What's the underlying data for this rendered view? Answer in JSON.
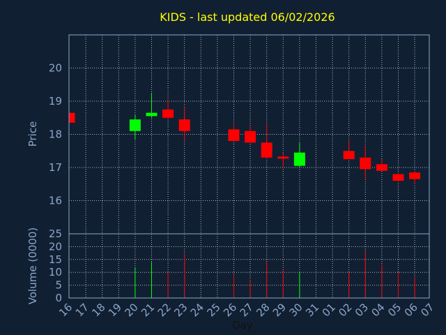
{
  "chart_data": {
    "type": "candlestick",
    "title": "KIDS - last updated 06/02/2026",
    "xlabel": "Day",
    "x_ticks": [
      "16",
      "17",
      "18",
      "19",
      "20",
      "21",
      "22",
      "23",
      "24",
      "25",
      "26",
      "27",
      "28",
      "29",
      "30",
      "31",
      "01",
      "02",
      "03",
      "04",
      "05",
      "06",
      "07"
    ],
    "price_panel": {
      "ylabel": "Price",
      "ylim": [
        15.0,
        21.0
      ],
      "yticks": [
        16,
        17,
        18,
        19,
        20
      ],
      "grid": true
    },
    "volume_panel": {
      "ylabel": "Volume (0000)",
      "ylim": [
        0,
        25
      ],
      "yticks": [
        0,
        5,
        10,
        15,
        20,
        25
      ],
      "grid": true
    },
    "colors": {
      "up": "#00ff00",
      "down": "#ff0000",
      "background": "#111f33",
      "text": "#8aa8c8",
      "title": "#ffff00"
    },
    "candles": [
      {
        "day": "16",
        "open": 18.65,
        "high": 18.65,
        "low": 18.35,
        "close": 18.35,
        "volume": 0
      },
      {
        "day": "20",
        "open": 18.1,
        "high": 18.6,
        "low": 17.85,
        "close": 18.45,
        "volume": 12
      },
      {
        "day": "21",
        "open": 18.55,
        "high": 19.25,
        "low": 18.5,
        "close": 18.65,
        "volume": 14
      },
      {
        "day": "22",
        "open": 18.75,
        "high": 19.05,
        "low": 18.45,
        "close": 18.5,
        "volume": 10
      },
      {
        "day": "23",
        "open": 18.45,
        "high": 18.85,
        "low": 17.8,
        "close": 18.1,
        "volume": 17
      },
      {
        "day": "26",
        "open": 18.15,
        "high": 18.3,
        "low": 17.8,
        "close": 17.8,
        "volume": 9
      },
      {
        "day": "27",
        "open": 18.1,
        "high": 18.25,
        "low": 17.75,
        "close": 17.75,
        "volume": 7
      },
      {
        "day": "28",
        "open": 17.75,
        "high": 18.3,
        "low": 17.25,
        "close": 17.3,
        "volume": 14
      },
      {
        "day": "29",
        "open": 17.33,
        "high": 17.45,
        "low": 17.0,
        "close": 17.27,
        "volume": 11
      },
      {
        "day": "30",
        "open": 17.05,
        "high": 17.75,
        "low": 17.0,
        "close": 17.45,
        "volume": 10
      },
      {
        "day": "02",
        "open": 17.5,
        "high": 17.8,
        "low": 17.25,
        "close": 17.25,
        "volume": 10
      },
      {
        "day": "03",
        "open": 17.3,
        "high": 17.65,
        "low": 16.65,
        "close": 16.95,
        "volume": 18
      },
      {
        "day": "04",
        "open": 17.1,
        "high": 17.25,
        "low": 16.9,
        "close": 16.9,
        "volume": 13
      },
      {
        "day": "05",
        "open": 16.8,
        "high": 16.85,
        "low": 16.55,
        "close": 16.6,
        "volume": 10
      },
      {
        "day": "06",
        "open": 16.85,
        "high": 16.9,
        "low": 16.5,
        "close": 16.65,
        "volume": 8
      }
    ]
  }
}
